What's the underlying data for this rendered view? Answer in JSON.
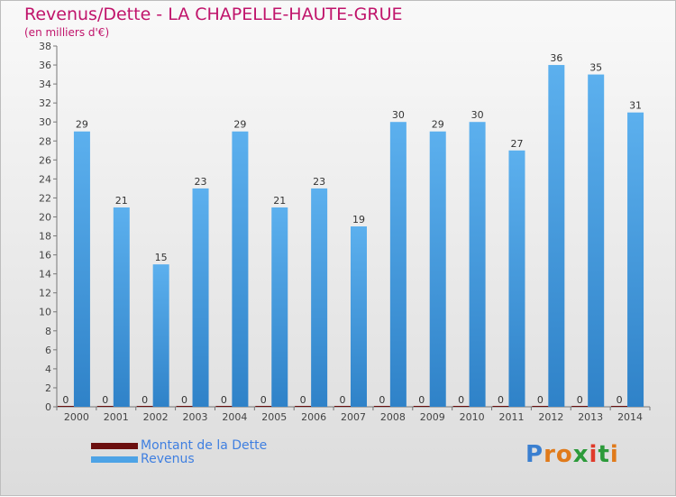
{
  "header": {
    "title": "Revenus/Dette - LA CHAPELLE-HAUTE-GRUE",
    "subtitle": "(en milliers d'€)"
  },
  "legend": [
    {
      "label": "Montant de la Dette",
      "color": "#6b0f0f"
    },
    {
      "label": "Revenus",
      "color": "#4da3e6"
    }
  ],
  "logo": "Proxiti",
  "chart_data": {
    "type": "bar",
    "title": "Revenus/Dette - LA CHAPELLE-HAUTE-GRUE",
    "ylabel": "(en milliers d'€)",
    "ylim": [
      0,
      38
    ],
    "yticks": [
      0,
      2,
      4,
      6,
      8,
      10,
      12,
      14,
      16,
      18,
      20,
      22,
      24,
      26,
      28,
      30,
      32,
      34,
      36,
      38
    ],
    "grid": false,
    "legend_position": "bottom-left",
    "categories": [
      "2000",
      "2001",
      "2002",
      "2003",
      "2004",
      "2005",
      "2006",
      "2007",
      "2008",
      "2009",
      "2010",
      "2011",
      "2012",
      "2013",
      "2014"
    ],
    "series": [
      {
        "name": "Montant de la Dette",
        "color": "#6b0f0f",
        "values": [
          0,
          0,
          0,
          0,
          0,
          0,
          0,
          0,
          0,
          0,
          0,
          0,
          0,
          0,
          0
        ]
      },
      {
        "name": "Revenus",
        "color": "#4da3e6",
        "values": [
          29,
          21,
          15,
          23,
          29,
          21,
          23,
          19,
          30,
          29,
          30,
          27,
          36,
          35,
          31
        ]
      }
    ]
  }
}
